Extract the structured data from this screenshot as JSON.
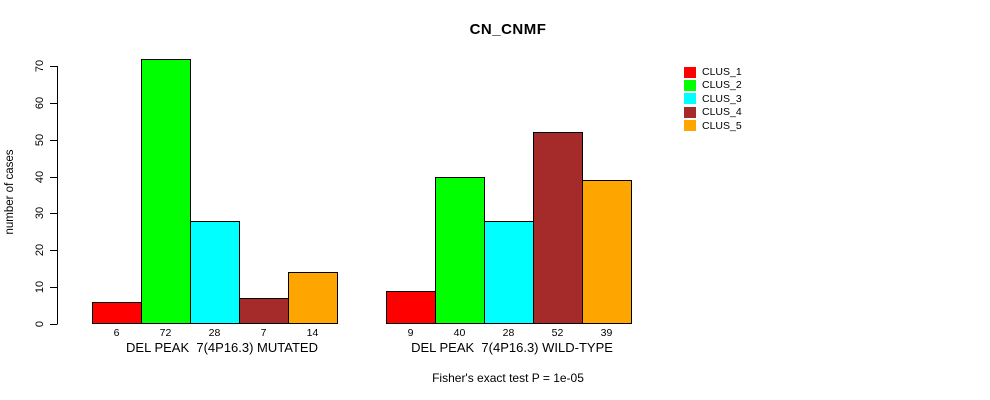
{
  "chart_data": {
    "type": "bar",
    "title": "CN_CNMF",
    "ylabel": "number of cases",
    "xlabel": "",
    "footer": "Fisher's exact test P = 1e-05",
    "ylim": [
      0,
      70
    ],
    "y_ticks": [
      0,
      10,
      20,
      30,
      40,
      50,
      60,
      70
    ],
    "grid": false,
    "legend_position": "right",
    "bar_border_color": "#000000",
    "series": [
      {
        "name": "CLUS_1",
        "color": "#ff0000"
      },
      {
        "name": "CLUS_2",
        "color": "#00ff00"
      },
      {
        "name": "CLUS_3",
        "color": "#00ffff"
      },
      {
        "name": "CLUS_4",
        "color": "#a52a2a"
      },
      {
        "name": "CLUS_5",
        "color": "#ffa500"
      }
    ],
    "groups": [
      {
        "label": "DEL PEAK  7(4P16.3) MUTATED",
        "values": [
          6,
          72,
          28,
          7,
          14
        ]
      },
      {
        "label": "DEL PEAK  7(4P16.3) WILD-TYPE",
        "values": [
          9,
          40,
          28,
          52,
          39
        ]
      }
    ]
  }
}
